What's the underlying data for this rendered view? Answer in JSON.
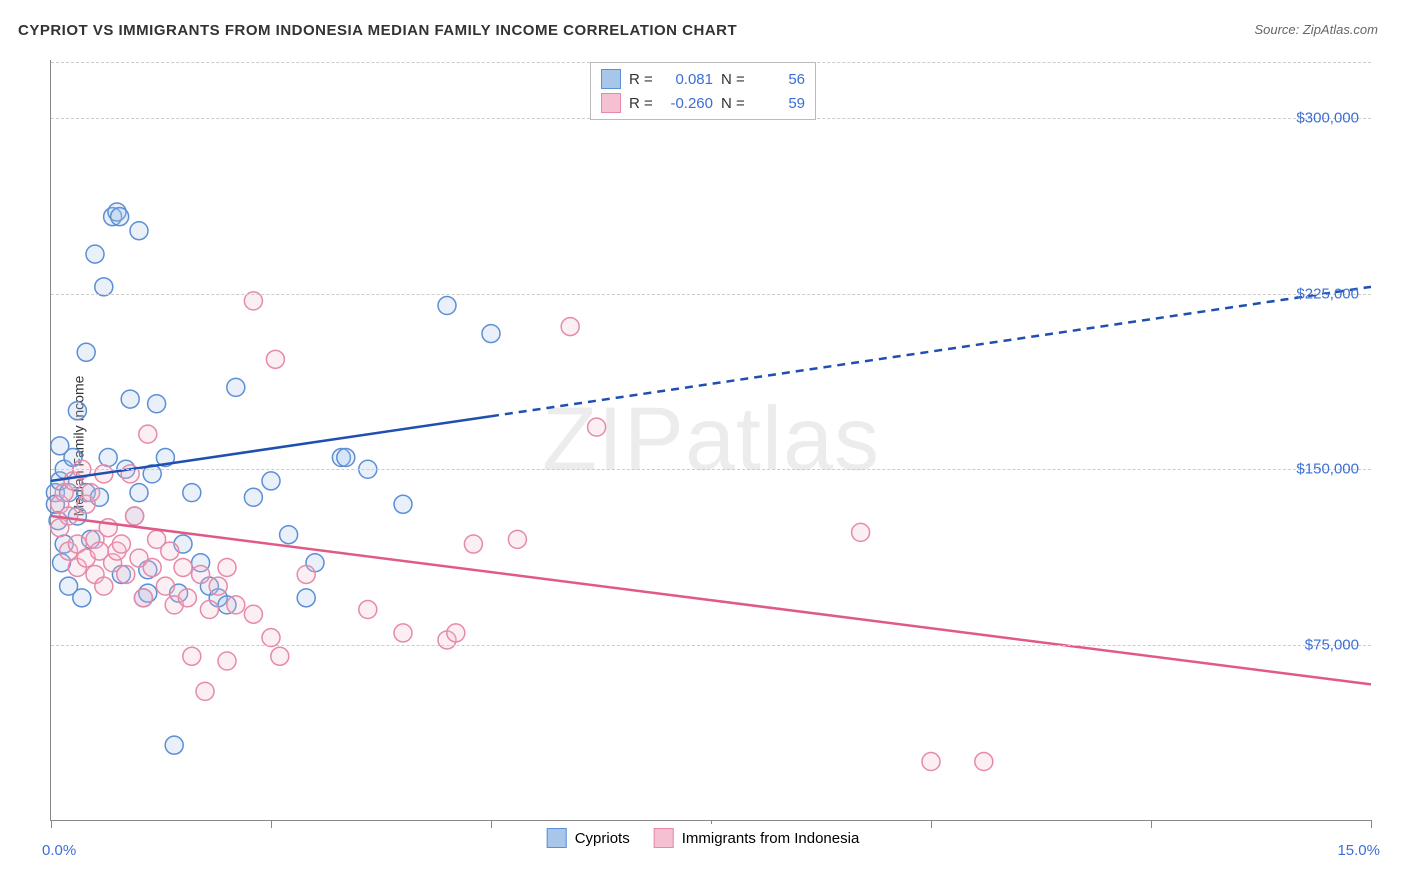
{
  "title": "CYPRIOT VS IMMIGRANTS FROM INDONESIA MEDIAN FAMILY INCOME CORRELATION CHART",
  "source_label": "Source: ",
  "source_name": "ZipAtlas.com",
  "y_axis_label": "Median Family Income",
  "watermark": "ZIPatlas",
  "chart": {
    "type": "scatter",
    "xlim": [
      0,
      15
    ],
    "ylim": [
      0,
      325000
    ],
    "x_min_label": "0.0%",
    "x_max_label": "15.0%",
    "x_ticks": [
      0,
      2.5,
      5,
      7.5,
      10,
      12.5,
      15
    ],
    "y_gridlines": [
      75000,
      150000,
      225000,
      300000
    ],
    "y_tick_labels": [
      "$75,000",
      "$150,000",
      "$225,000",
      "$300,000"
    ],
    "grid_color": "#cccccc",
    "axis_color": "#888888",
    "background_color": "#ffffff",
    "point_radius": 9,
    "point_stroke_width": 1.5,
    "point_fill_opacity": 0.25,
    "trend_line_width": 2.5,
    "series": [
      {
        "name": "Cypriots",
        "color_stroke": "#5b8fd6",
        "color_fill": "#a8c5ea",
        "trend_color": "#1f4fb0",
        "R": "0.081",
        "N": "56",
        "trend_solid_until_x": 5.0,
        "trend": {
          "x1": 0,
          "y1": 145000,
          "x2": 15,
          "y2": 228000
        },
        "points": [
          [
            0.05,
            140000
          ],
          [
            0.05,
            135000
          ],
          [
            0.08,
            128000
          ],
          [
            0.1,
            145000
          ],
          [
            0.1,
            160000
          ],
          [
            0.12,
            110000
          ],
          [
            0.15,
            150000
          ],
          [
            0.15,
            118000
          ],
          [
            0.2,
            140000
          ],
          [
            0.2,
            100000
          ],
          [
            0.25,
            155000
          ],
          [
            0.3,
            175000
          ],
          [
            0.3,
            130000
          ],
          [
            0.35,
            95000
          ],
          [
            0.4,
            200000
          ],
          [
            0.4,
            140000
          ],
          [
            0.45,
            120000
          ],
          [
            0.5,
            242000
          ],
          [
            0.55,
            138000
          ],
          [
            0.6,
            228000
          ],
          [
            0.65,
            155000
          ],
          [
            0.7,
            258000
          ],
          [
            0.75,
            260000
          ],
          [
            0.78,
            258000
          ],
          [
            0.8,
            105000
          ],
          [
            0.85,
            150000
          ],
          [
            0.9,
            180000
          ],
          [
            0.95,
            130000
          ],
          [
            1.0,
            252000
          ],
          [
            1.0,
            140000
          ],
          [
            1.05,
            95000
          ],
          [
            1.1,
            107000
          ],
          [
            1.1,
            97000
          ],
          [
            1.15,
            148000
          ],
          [
            1.2,
            178000
          ],
          [
            1.3,
            155000
          ],
          [
            1.4,
            32000
          ],
          [
            1.45,
            97000
          ],
          [
            1.5,
            118000
          ],
          [
            1.6,
            140000
          ],
          [
            1.7,
            110000
          ],
          [
            1.8,
            100000
          ],
          [
            1.9,
            95000
          ],
          [
            2.0,
            92000
          ],
          [
            2.1,
            185000
          ],
          [
            2.3,
            138000
          ],
          [
            2.5,
            145000
          ],
          [
            2.7,
            122000
          ],
          [
            2.9,
            95000
          ],
          [
            3.3,
            155000
          ],
          [
            3.35,
            155000
          ],
          [
            3.6,
            150000
          ],
          [
            4.0,
            135000
          ],
          [
            4.5,
            220000
          ],
          [
            5.0,
            208000
          ],
          [
            3.0,
            110000
          ]
        ]
      },
      {
        "name": "Immigrants from Indonesia",
        "color_stroke": "#e68aa8",
        "color_fill": "#f5c0d1",
        "trend_color": "#e05a88",
        "R": "-0.260",
        "N": "59",
        "trend_solid_until_x": 15.0,
        "trend": {
          "x1": 0,
          "y1": 130000,
          "x2": 15,
          "y2": 58000
        },
        "points": [
          [
            0.1,
            135000
          ],
          [
            0.1,
            125000
          ],
          [
            0.15,
            140000
          ],
          [
            0.2,
            130000
          ],
          [
            0.2,
            115000
          ],
          [
            0.25,
            145000
          ],
          [
            0.3,
            118000
          ],
          [
            0.3,
            108000
          ],
          [
            0.35,
            150000
          ],
          [
            0.4,
            135000
          ],
          [
            0.4,
            112000
          ],
          [
            0.45,
            140000
          ],
          [
            0.5,
            120000
          ],
          [
            0.5,
            105000
          ],
          [
            0.55,
            115000
          ],
          [
            0.6,
            148000
          ],
          [
            0.6,
            100000
          ],
          [
            0.65,
            125000
          ],
          [
            0.7,
            110000
          ],
          [
            0.75,
            115000
          ],
          [
            0.8,
            118000
          ],
          [
            0.85,
            105000
          ],
          [
            0.9,
            148000
          ],
          [
            0.95,
            130000
          ],
          [
            1.0,
            112000
          ],
          [
            1.05,
            95000
          ],
          [
            1.1,
            165000
          ],
          [
            1.15,
            108000
          ],
          [
            1.2,
            120000
          ],
          [
            1.3,
            100000
          ],
          [
            1.35,
            115000
          ],
          [
            1.4,
            92000
          ],
          [
            1.5,
            108000
          ],
          [
            1.55,
            95000
          ],
          [
            1.6,
            70000
          ],
          [
            1.7,
            105000
          ],
          [
            1.75,
            55000
          ],
          [
            1.8,
            90000
          ],
          [
            1.9,
            100000
          ],
          [
            2.0,
            108000
          ],
          [
            2.0,
            68000
          ],
          [
            2.1,
            92000
          ],
          [
            2.3,
            222000
          ],
          [
            2.3,
            88000
          ],
          [
            2.5,
            78000
          ],
          [
            2.55,
            197000
          ],
          [
            2.6,
            70000
          ],
          [
            2.9,
            105000
          ],
          [
            3.6,
            90000
          ],
          [
            4.0,
            80000
          ],
          [
            4.5,
            77000
          ],
          [
            4.6,
            80000
          ],
          [
            4.8,
            118000
          ],
          [
            5.3,
            120000
          ],
          [
            5.9,
            211000
          ],
          [
            6.2,
            168000
          ],
          [
            9.2,
            123000
          ],
          [
            10.0,
            25000
          ],
          [
            10.6,
            25000
          ]
        ]
      }
    ]
  },
  "legend_top": {
    "r_label": "R =",
    "n_label": "N ="
  },
  "swatch_blue": {
    "fill": "#a8c5ea",
    "border": "#5b8fd6"
  },
  "swatch_pink": {
    "fill": "#f5c0d1",
    "border": "#e68aa8"
  }
}
